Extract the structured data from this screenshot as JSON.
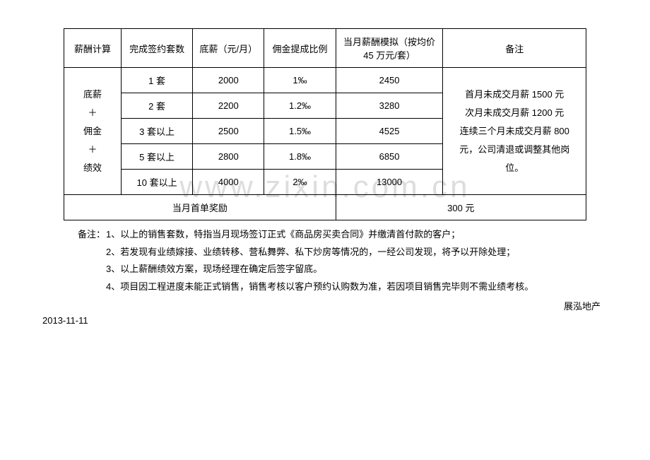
{
  "watermark": "www.zixin.com.cn",
  "table": {
    "headers": {
      "c1": "薪酬计算",
      "c2": "完成签约套数",
      "c3": "底薪（元/月）",
      "c4": "佣金提成比例",
      "c5": "当月薪酬模拟（按均价 45 万元/套）",
      "c6": "备注"
    },
    "rowLabel": {
      "l1": "底薪",
      "l2": "＋",
      "l3": "佣金",
      "l4": "＋",
      "l5": "绩效"
    },
    "rows": [
      {
        "sets": "1 套",
        "base": "2000",
        "rate": "1‰",
        "sim": "2450"
      },
      {
        "sets": "2 套",
        "base": "2200",
        "rate": "1.2‰",
        "sim": "3280"
      },
      {
        "sets": "3 套以上",
        "base": "2500",
        "rate": "1.5‰",
        "sim": "4525"
      },
      {
        "sets": "5 套以上",
        "base": "2800",
        "rate": "1.8‰",
        "sim": "6850"
      },
      {
        "sets": "10 套以上",
        "base": "4000",
        "rate": "2‰",
        "sim": "13000"
      }
    ],
    "remark": {
      "l1": "首月未成交月薪 1500 元",
      "l2": "次月未成交月薪 1200 元",
      "l3": "连续三个月未成交月薪 800",
      "l4": "元，公司清退或调整其他岗",
      "l5": "位。"
    },
    "bonus": {
      "label": "当月首单奖励",
      "value": "300 元"
    }
  },
  "notes": {
    "label": "备注：",
    "items": [
      "1、以上的销售套数，特指当月现场签订正式《商品房买卖合同》并缴清首付款的客户；",
      "2、若发现有业绩嫁接、业绩转移、营私舞弊、私下炒房等情况的，一经公司发现，将予以开除处理；",
      "3、以上薪酬绩效方案，现场经理在确定后签字留底。",
      "4、项目因工程进度未能正式销售，销售考核以客户预约认购数为准，若因项目销售完毕则不需业绩考核。"
    ]
  },
  "signature": "展泓地产",
  "date": "2013-11-11"
}
